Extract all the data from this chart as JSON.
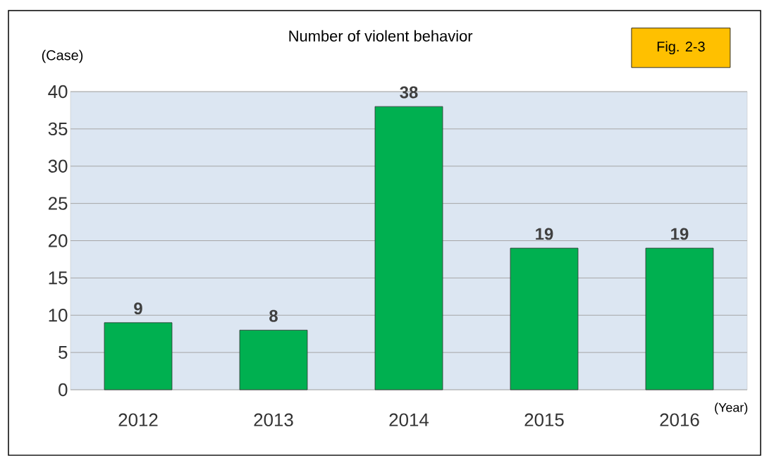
{
  "chart_data": {
    "type": "bar",
    "title": "Number of violent behavior",
    "xlabel": "(Year)",
    "ylabel": "(Case)",
    "annotations": [
      "Fig. 2-3"
    ],
    "categories": [
      "2012",
      "2013",
      "2014",
      "2015",
      "2016"
    ],
    "values": [
      9,
      8,
      38,
      19,
      19
    ],
    "color": "#00b050",
    "ylim": [
      0,
      40
    ],
    "yticks": [
      0,
      5,
      10,
      15,
      20,
      25,
      30,
      35,
      40
    ],
    "grid": "y",
    "data_labels": true
  }
}
